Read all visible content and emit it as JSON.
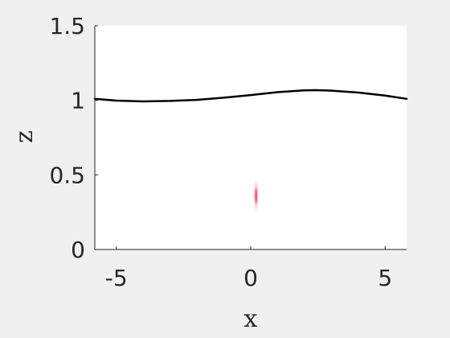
{
  "chart_data": {
    "type": "line",
    "xlabel": "x",
    "ylabel": "z",
    "xlim": [
      -5.8,
      5.8
    ],
    "ylim": [
      0,
      1.5
    ],
    "xticks": [
      -5,
      0,
      5
    ],
    "xtick_labels": [
      "-5",
      "0",
      "5"
    ],
    "yticks": [
      0,
      0.5,
      1,
      1.5
    ],
    "ytick_labels": [
      "0",
      "0.5",
      "1",
      "1.5"
    ],
    "grid": false,
    "series": [
      {
        "color": "#000000",
        "x": [
          -5.8,
          -5.0,
          -4.0,
          -3.0,
          -2.0,
          -1.0,
          0.0,
          1.0,
          2.0,
          2.4,
          3.0,
          4.0,
          5.0,
          5.8
        ],
        "y": [
          1.01,
          0.998,
          0.993,
          0.996,
          1.003,
          1.018,
          1.035,
          1.055,
          1.067,
          1.068,
          1.065,
          1.052,
          1.032,
          1.01
        ]
      }
    ],
    "blob": {
      "x": 0.2,
      "y": 0.36,
      "color": "#e04050"
    },
    "colors": {
      "background": "#f0f0f0",
      "plot_area": "#ffffff",
      "axis": "#262626"
    }
  }
}
